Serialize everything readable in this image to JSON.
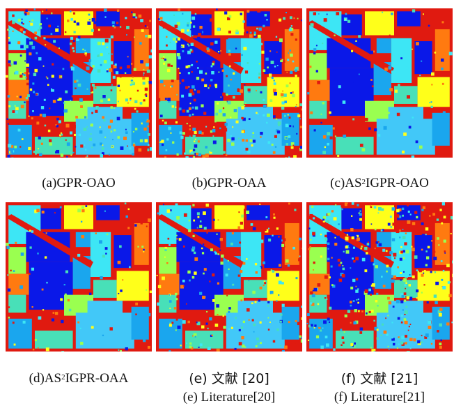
{
  "panels": [
    {
      "id": "a",
      "caption_prefix": "(a)",
      "caption_name": "GPR-OAO",
      "noise": "high"
    },
    {
      "id": "b",
      "caption_prefix": "(b)",
      "caption_name": "GPR-OAA",
      "noise": "high"
    },
    {
      "id": "c",
      "caption_prefix": "(c)AS",
      "caption_sup": "2",
      "caption_name": "IGPR-OAO",
      "noise": "low"
    },
    {
      "id": "d",
      "caption_prefix": "(d)AS",
      "caption_sup": "2",
      "caption_name": "IGPR-OAA",
      "noise": "low"
    },
    {
      "id": "e",
      "caption_cn": "(e) 文献 [20]",
      "caption_en": "(e) Literature[20]",
      "noise": "medium"
    },
    {
      "id": "f",
      "caption_cn": "(f) 文献 [21]",
      "caption_en": "(f) Literature[21]",
      "noise": "high"
    }
  ],
  "colors": {
    "red": "#e01a10",
    "blue": "#0a18e8",
    "light_blue": "#1aa6ee",
    "cyan": "#3de6f5",
    "yellow": "#ffff1a",
    "orange": "#ff7a10",
    "lime": "#9aff50",
    "teal": "#48e0b8",
    "dark_red": "#a01010",
    "sky": "#42c8f8"
  }
}
